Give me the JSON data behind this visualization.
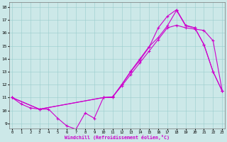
{
  "xlabel": "Windchill (Refroidissement éolien,°C)",
  "bg_color": "#cce8e8",
  "line_color": "#cc00cc",
  "grid_color": "#99cccc",
  "x_ticks": [
    0,
    1,
    2,
    3,
    4,
    5,
    6,
    7,
    8,
    9,
    10,
    11,
    12,
    13,
    14,
    15,
    16,
    17,
    18,
    19,
    20,
    21,
    22,
    23
  ],
  "y_ticks": [
    9,
    10,
    11,
    12,
    13,
    14,
    15,
    16,
    17,
    18
  ],
  "xlim": [
    -0.3,
    23.3
  ],
  "ylim": [
    8.6,
    18.4
  ],
  "line1_x": [
    0,
    1,
    2,
    3,
    4,
    5,
    6,
    7,
    8,
    9,
    10,
    11,
    12,
    13,
    14,
    15,
    16,
    17,
    18,
    19,
    20,
    21,
    22,
    23
  ],
  "line1_y": [
    11.0,
    10.5,
    10.2,
    10.1,
    10.1,
    9.4,
    8.8,
    8.55,
    9.8,
    9.4,
    11.0,
    11.0,
    12.0,
    13.0,
    13.9,
    14.9,
    16.4,
    17.3,
    17.8,
    16.6,
    16.4,
    15.1,
    13.0,
    11.5
  ],
  "line2_x": [
    0,
    3,
    10,
    11,
    12,
    13,
    14,
    15,
    16,
    17,
    18,
    19,
    20,
    21,
    22,
    23
  ],
  "line2_y": [
    11.0,
    10.1,
    11.0,
    11.05,
    11.9,
    12.8,
    13.7,
    14.6,
    15.5,
    16.4,
    16.6,
    16.4,
    16.3,
    16.2,
    15.4,
    11.5
  ],
  "line3_x": [
    0,
    3,
    10,
    11,
    12,
    13,
    14,
    15,
    16,
    17,
    18,
    19,
    20,
    21,
    22,
    23
  ],
  "line3_y": [
    11.0,
    10.1,
    11.0,
    11.05,
    12.0,
    13.05,
    14.0,
    14.95,
    15.65,
    16.55,
    17.75,
    16.55,
    16.4,
    15.1,
    13.0,
    11.5
  ]
}
